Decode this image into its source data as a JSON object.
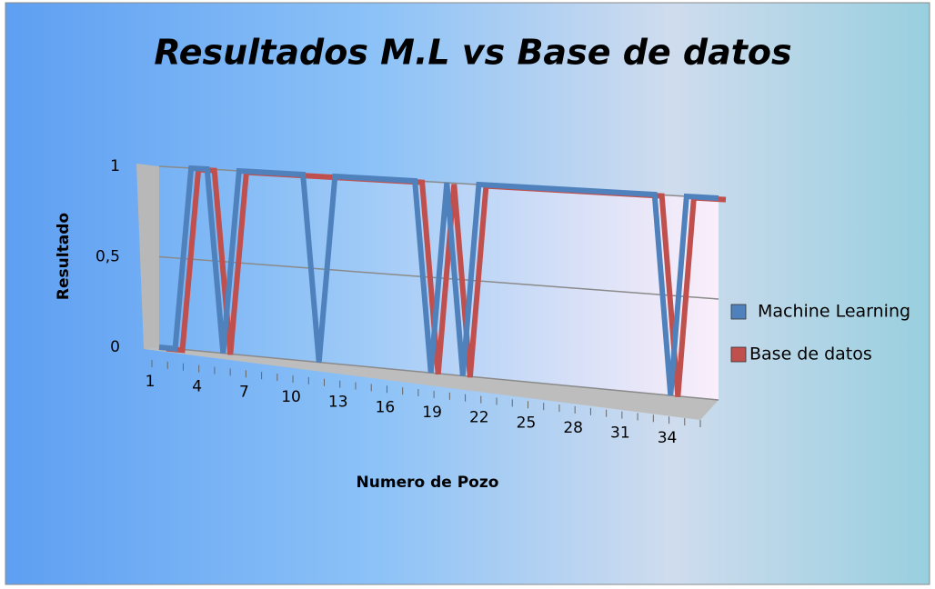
{
  "chart_data": {
    "type": "line",
    "title": "Resultados M.L vs Base de datos",
    "x_label": "Numero de Pozo",
    "y_label": "Resultado",
    "categories": [
      1,
      null,
      null,
      4,
      null,
      null,
      7,
      null,
      null,
      10,
      null,
      null,
      13,
      null,
      null,
      16,
      null,
      null,
      19,
      null,
      null,
      22,
      null,
      null,
      25,
      null,
      null,
      28,
      null,
      null,
      31,
      null,
      null,
      34,
      null,
      null
    ],
    "series": [
      {
        "name": "Machine Learning",
        "color": "#4f81bd",
        "values": [
          0,
          0,
          1,
          1,
          0,
          1,
          1,
          1,
          1,
          1,
          0,
          1,
          1,
          1,
          1,
          1,
          1,
          0,
          1,
          0,
          1,
          1,
          1,
          1,
          1,
          1,
          1,
          1,
          1,
          1,
          1,
          1,
          0,
          1,
          1,
          1
        ]
      },
      {
        "name": "Base de datos",
        "color": "#c0504d",
        "values": [
          0,
          0,
          1,
          1,
          0,
          1,
          1,
          1,
          1,
          1,
          1,
          1,
          1,
          1,
          1,
          1,
          1,
          0,
          1,
          0,
          1,
          1,
          1,
          1,
          1,
          1,
          1,
          1,
          1,
          1,
          1,
          1,
          0,
          1,
          1,
          1
        ]
      }
    ],
    "ylim": [
      0,
      1
    ],
    "yticks": [
      0,
      {
        "value": 0.5,
        "label": "0,5"
      },
      1
    ],
    "grid": true,
    "legend": "right"
  }
}
